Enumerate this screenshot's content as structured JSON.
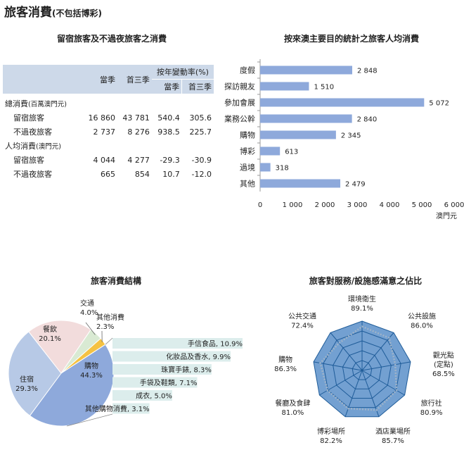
{
  "page_title": "旅客消費",
  "page_subtitle": "(不包括博彩)",
  "table": {
    "title": "留宿旅客及不過夜旅客之消費",
    "col_q": "當季",
    "col_ytd": "首三季",
    "col_change": "按年變動率(%)",
    "sub_q": "當季",
    "sub_ytd": "首三季",
    "groups": [
      {
        "label": "總消費",
        "unit": "(百萬澳門元)",
        "rows": [
          {
            "label": "留宿旅客",
            "q": "16 860",
            "ytd": "43 781",
            "chg_q": "540.4",
            "chg_ytd": "305.6"
          },
          {
            "label": "不過夜旅客",
            "q": "2 737",
            "ytd": "8 276",
            "chg_q": "938.5",
            "chg_ytd": "225.7"
          }
        ]
      },
      {
        "label": "人均消費",
        "unit": "(澳門元)",
        "rows": [
          {
            "label": "留宿旅客",
            "q": "4 044",
            "ytd": "4 277",
            "chg_q": "-29.3",
            "chg_ytd": "-30.9"
          },
          {
            "label": "不過夜旅客",
            "q": "665",
            "ytd": "854",
            "chg_q": "10.7",
            "chg_ytd": "-12.0"
          }
        ]
      }
    ]
  },
  "chart_data": [
    {
      "type": "bar",
      "orientation": "horizontal",
      "title": "按來澳主要目的統計之旅客人均消費",
      "categories": [
        "度假",
        "探訪親友",
        "參加會展",
        "業務公幹",
        "購物",
        "博彩",
        "過境",
        "其他"
      ],
      "values": [
        2848,
        1510,
        5072,
        2840,
        2345,
        613,
        318,
        2479
      ],
      "value_labels": [
        "2 848",
        "1 510",
        "5 072",
        "2 840",
        "2 345",
        "613",
        "318",
        "2 479"
      ],
      "xlim": [
        0,
        6000
      ],
      "xticks": [
        0,
        1000,
        2000,
        3000,
        4000,
        5000,
        6000
      ],
      "xtick_labels": [
        "0",
        "1 000",
        "2 000",
        "3 000",
        "4 000",
        "5 000",
        "6 000"
      ],
      "xlabel": "澳門元",
      "bar_color": "#8ea9db"
    },
    {
      "type": "pie",
      "title": "旅客消費結構",
      "slices": [
        {
          "label": "購物",
          "value": 44.3,
          "value_label": "44.3%",
          "color": "#8ea9db"
        },
        {
          "label": "住宿",
          "value": 29.3,
          "value_label": "29.3%",
          "color": "#b7c9e6"
        },
        {
          "label": "餐飲",
          "value": 20.1,
          "value_label": "20.1%",
          "color": "#f2dcdc"
        },
        {
          "label": "交通",
          "value": 4.0,
          "value_label": "4.0%",
          "color": "#d9ead3"
        },
        {
          "label": "其他消費",
          "value": 2.3,
          "value_label": "2.3%",
          "color": "#f5c242"
        }
      ],
      "breakdown_of": "購物",
      "breakdown": [
        {
          "label": "手信食品",
          "value": 10.9,
          "text": "手信食品, 10.9%"
        },
        {
          "label": "化妝品及香水",
          "value": 9.9,
          "text": "化妝品及香水, 9.9%"
        },
        {
          "label": "珠寶手錶",
          "value": 8.3,
          "text": "珠寶手錶, 8.3%"
        },
        {
          "label": "手袋及鞋類",
          "value": 7.1,
          "text": "手袋及鞋類, 7.1%"
        },
        {
          "label": "成衣",
          "value": 5.0,
          "text": "成衣, 5.0%"
        },
        {
          "label": "其他購物消費",
          "value": 3.1,
          "text": "其他購物消費, 3.1%"
        }
      ],
      "breakdown_color": "#dcedec"
    },
    {
      "type": "radar",
      "title": "旅客對服務/設施感滿意之佔比",
      "axes": [
        {
          "label": "環境衛生",
          "value": 89.1,
          "value_label": "89.1%"
        },
        {
          "label": "公共設施",
          "value": 86.0,
          "value_label": "86.0%"
        },
        {
          "label": "觀光點(定點)",
          "label_lines": [
            "觀光點",
            "(定點)"
          ],
          "value": 68.5,
          "value_label": "68.5%"
        },
        {
          "label": "旅行社",
          "value": 80.9,
          "value_label": "80.9%"
        },
        {
          "label": "酒店業場所",
          "value": 85.7,
          "value_label": "85.7%"
        },
        {
          "label": "博彩場所",
          "value": 82.2,
          "value_label": "82.2%"
        },
        {
          "label": "餐廳及食肆",
          "value": 81.0,
          "value_label": "81.0%"
        },
        {
          "label": "購物",
          "value": 86.3,
          "value_label": "86.3%"
        },
        {
          "label": "公共交通",
          "value": 72.4,
          "value_label": "72.4%"
        }
      ],
      "rmax": 100,
      "levels": 5,
      "line_color": "#1f5c99",
      "fill_color": "#5b8fc9"
    }
  ]
}
